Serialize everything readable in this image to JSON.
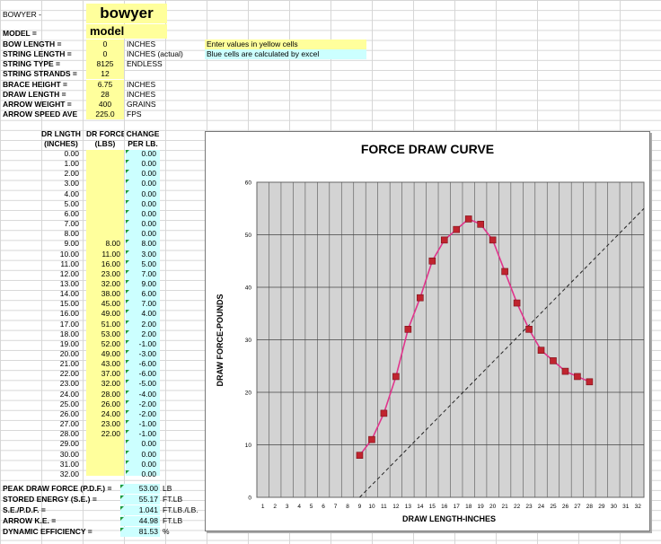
{
  "header": {
    "bowyer_label": "BOWYER -",
    "bowyer_value": "bowyer",
    "model_label": "MODEL =",
    "model_value": "model"
  },
  "params": [
    {
      "label": "BOW LENGTH =",
      "value": "0",
      "unit": "INCHES"
    },
    {
      "label": "STRING LENGTH =",
      "value": "0",
      "unit": "INCHES (actual)"
    },
    {
      "label": "STRING TYPE =",
      "value": "8125",
      "unit": "ENDLESS"
    },
    {
      "label": "STRING STRANDS =",
      "value": "12",
      "unit": ""
    },
    {
      "label": "BRACE HEIGHT =",
      "value": "6.75",
      "unit": "INCHES"
    },
    {
      "label": "DRAW LENGTH =",
      "value": "28",
      "unit": "INCHES"
    },
    {
      "label": "ARROW WEIGHT =",
      "value": "400",
      "unit": "GRAINS"
    },
    {
      "label": "ARROW SPEED AVE",
      "value": "225.0",
      "unit": "FPS"
    }
  ],
  "notes": {
    "yellow": "Enter values in yellow cells",
    "blue": "Blue cells are calculated by excel",
    "yellow_color": "#ffff9c",
    "blue_color": "#ccffff"
  },
  "table": {
    "headers": [
      "DR LNGTH",
      "DR  FORCE",
      "CHANGE"
    ],
    "subheaders": [
      "(INCHES)",
      "(LBS)",
      "PER LB."
    ],
    "rows": [
      [
        "0.00",
        "",
        "0.00"
      ],
      [
        "1.00",
        "",
        "0.00"
      ],
      [
        "2.00",
        "",
        "0.00"
      ],
      [
        "3.00",
        "",
        "0.00"
      ],
      [
        "4.00",
        "",
        "0.00"
      ],
      [
        "5.00",
        "",
        "0.00"
      ],
      [
        "6.00",
        "",
        "0.00"
      ],
      [
        "7.00",
        "",
        "0.00"
      ],
      [
        "8.00",
        "",
        "0.00"
      ],
      [
        "9.00",
        "8.00",
        "8.00"
      ],
      [
        "10.00",
        "11.00",
        "3.00"
      ],
      [
        "11.00",
        "16.00",
        "5.00"
      ],
      [
        "12.00",
        "23.00",
        "7.00"
      ],
      [
        "13.00",
        "32.00",
        "9.00"
      ],
      [
        "14.00",
        "38.00",
        "6.00"
      ],
      [
        "15.00",
        "45.00",
        "7.00"
      ],
      [
        "16.00",
        "49.00",
        "4.00"
      ],
      [
        "17.00",
        "51.00",
        "2.00"
      ],
      [
        "18.00",
        "53.00",
        "2.00"
      ],
      [
        "19.00",
        "52.00",
        "-1.00"
      ],
      [
        "20.00",
        "49.00",
        "-3.00"
      ],
      [
        "21.00",
        "43.00",
        "-6.00"
      ],
      [
        "22.00",
        "37.00",
        "-6.00"
      ],
      [
        "23.00",
        "32.00",
        "-5.00"
      ],
      [
        "24.00",
        "28.00",
        "-4.00"
      ],
      [
        "25.00",
        "26.00",
        "-2.00"
      ],
      [
        "26.00",
        "24.00",
        "-2.00"
      ],
      [
        "27.00",
        "23.00",
        "-1.00"
      ],
      [
        "28.00",
        "22.00",
        "-1.00"
      ],
      [
        "29.00",
        "",
        "0.00"
      ],
      [
        "30.00",
        "",
        "0.00"
      ],
      [
        "31.00",
        "",
        "0.00"
      ],
      [
        "32.00",
        "",
        "0.00"
      ]
    ]
  },
  "summary": [
    {
      "label": "PEAK DRAW FORCE (P.D.F.) =",
      "value": "53.00",
      "unit": "LB"
    },
    {
      "label": "STORED ENERGY (S.E.) =",
      "value": "55.17",
      "unit": "FT.LB"
    },
    {
      "label": "S.E./P.D.F. =",
      "value": "1.041",
      "unit": "FT.LB./LB."
    },
    {
      "label": "ARROW K.E. =",
      "value": "44.98",
      "unit": "FT.LB"
    },
    {
      "label": "DYNAMIC EFFICIENCY =",
      "value": "81.53",
      "unit": "%"
    }
  ],
  "chart_data": {
    "type": "line",
    "title": "FORCE DRAW CURVE",
    "xlabel": "DRAW LENGTH-INCHES",
    "ylabel": "DRAW FORCE-POUNDS",
    "x_ticks": [
      "1",
      "2",
      "3",
      "4",
      "5",
      "6",
      "7",
      "8",
      "9",
      "10",
      "11",
      "12",
      "13",
      "14",
      "15",
      "16",
      "17",
      "18",
      "19",
      "20",
      "21",
      "22",
      "23",
      "24",
      "25",
      "26",
      "27",
      "28",
      "29",
      "30",
      "31",
      "32"
    ],
    "y_ticks": [
      "0",
      "10",
      "20",
      "30",
      "40",
      "50",
      "60"
    ],
    "xlim": [
      0.5,
      32.5
    ],
    "ylim": [
      0,
      60
    ],
    "grid": true,
    "plot_bg": "#d3d3d3",
    "series": [
      {
        "color": "#e0358c",
        "marker_color": "#c0242f",
        "x": [
          9,
          10,
          11,
          12,
          13,
          14,
          15,
          16,
          17,
          18,
          19,
          20,
          21,
          22,
          23,
          24,
          25,
          26,
          27,
          28
        ],
        "y": [
          8,
          11,
          16,
          23,
          32,
          38,
          45,
          49,
          51,
          53,
          52,
          49,
          43,
          37,
          32,
          28,
          26,
          24,
          23,
          22
        ]
      }
    ],
    "reference_line": {
      "style": "dashed",
      "from": [
        9,
        0
      ],
      "to": [
        32.5,
        55
      ]
    }
  }
}
